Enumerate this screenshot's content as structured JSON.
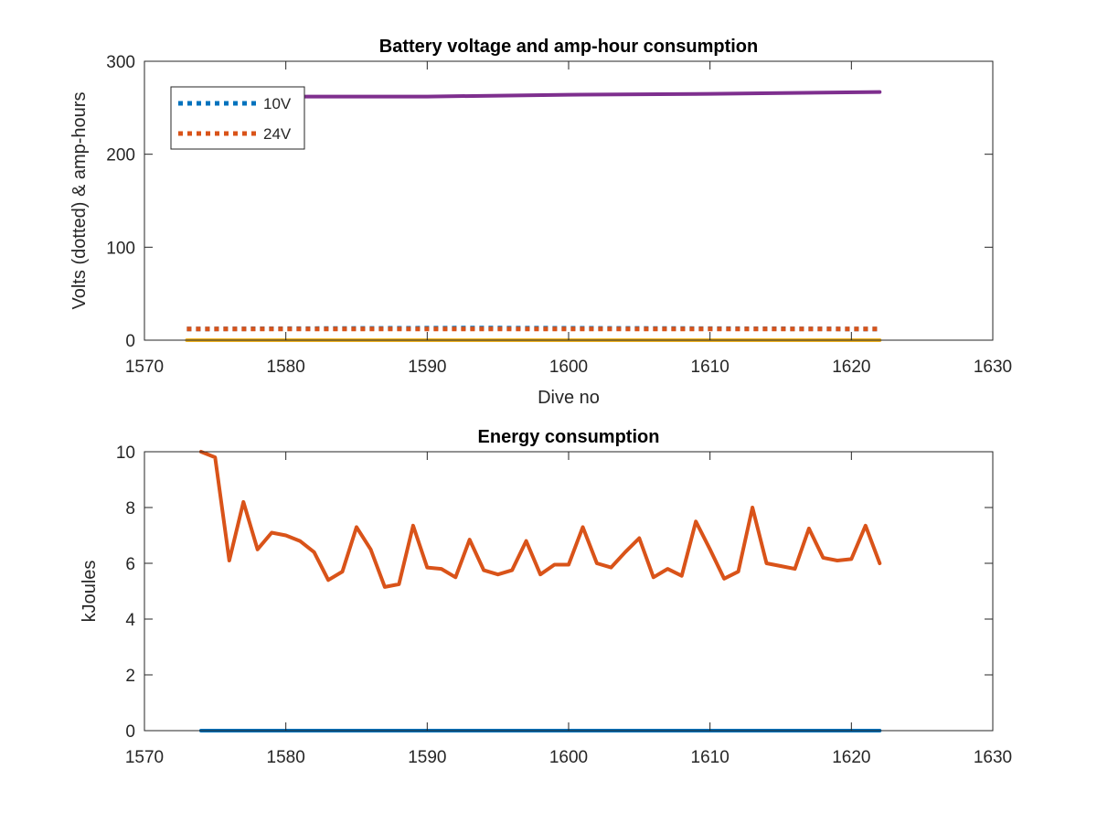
{
  "chart_data": [
    {
      "type": "line",
      "title": "Battery voltage and amp-hour consumption",
      "xlabel": "Dive no",
      "ylabel": "Volts (dotted) & amp-hours",
      "xlim": [
        1570,
        1630
      ],
      "ylim": [
        0,
        300
      ],
      "xticks": [
        "1570",
        "1580",
        "1590",
        "1600",
        "1610",
        "1620",
        "1630"
      ],
      "yticks": [
        "0",
        "100",
        "200",
        "300"
      ],
      "legend_position": "top-left",
      "grid": false,
      "series": [
        {
          "name": "10V",
          "color": "#0072BD",
          "style": "dotted",
          "x": [
            1573,
            1592,
            1595,
            1622
          ],
          "y": [
            12,
            13,
            13,
            12
          ]
        },
        {
          "name": "24V",
          "color": "#D95319",
          "style": "dotted",
          "x": [
            1573,
            1622
          ],
          "y": [
            12,
            12
          ]
        },
        {
          "name": "",
          "color": "#7E2F8E",
          "style": "solid",
          "x": [
            1573,
            1590,
            1600,
            1610,
            1622
          ],
          "y": [
            262,
            262,
            264,
            265,
            267
          ]
        },
        {
          "name": "",
          "color": "#EDB120",
          "style": "solid",
          "x": [
            1573,
            1622
          ],
          "y": [
            0,
            0
          ]
        }
      ]
    },
    {
      "type": "line",
      "title": "Energy consumption",
      "xlabel": "",
      "ylabel": "kJoules",
      "xlim": [
        1570,
        1630
      ],
      "ylim": [
        0,
        10
      ],
      "xticks": [
        "1570",
        "1580",
        "1590",
        "1600",
        "1610",
        "1620",
        "1630"
      ],
      "yticks": [
        "0",
        "2",
        "4",
        "6",
        "8",
        "10"
      ],
      "grid": false,
      "series": [
        {
          "name": "",
          "color": "#D95319",
          "style": "solid",
          "x": [
            1574,
            1575,
            1576,
            1577,
            1578,
            1579,
            1580,
            1581,
            1582,
            1583,
            1584,
            1585,
            1586,
            1587,
            1588,
            1589,
            1590,
            1591,
            1592,
            1593,
            1594,
            1595,
            1596,
            1597,
            1598,
            1599,
            1600,
            1601,
            1602,
            1603,
            1604,
            1605,
            1606,
            1607,
            1608,
            1609,
            1610,
            1611,
            1612,
            1613,
            1614,
            1615,
            1616,
            1617,
            1618,
            1619,
            1620,
            1621,
            1622
          ],
          "y": [
            10,
            9.8,
            6.1,
            8.2,
            6.5,
            7.1,
            7.0,
            6.8,
            6.4,
            5.4,
            5.7,
            7.3,
            6.5,
            5.15,
            5.25,
            7.35,
            5.85,
            5.8,
            5.5,
            6.85,
            5.75,
            5.6,
            5.75,
            6.8,
            5.6,
            5.95,
            5.95,
            7.3,
            6.0,
            5.85,
            6.4,
            6.9,
            5.5,
            5.8,
            5.55,
            7.5,
            6.5,
            5.45,
            5.7,
            8.0,
            6.0,
            5.9,
            5.8,
            7.25,
            6.2,
            6.1,
            6.15,
            7.35,
            6.0
          ]
        },
        {
          "name": "",
          "color": "#0072BD",
          "style": "solid",
          "x": [
            1574,
            1622
          ],
          "y": [
            0,
            0
          ]
        }
      ]
    }
  ]
}
